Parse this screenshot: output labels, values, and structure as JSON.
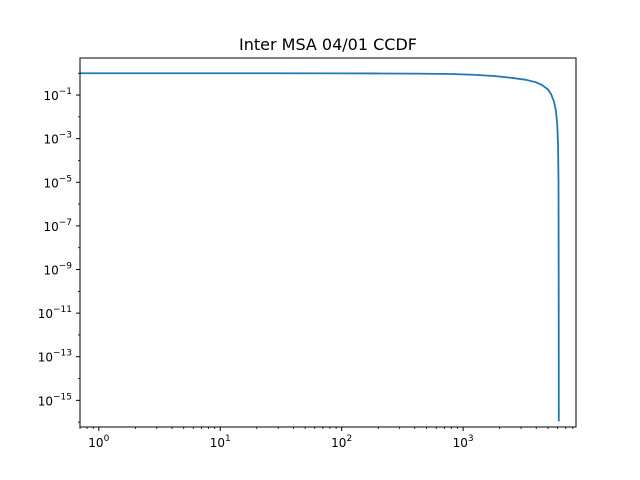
{
  "chart_data": {
    "type": "line",
    "title": "Inter MSA 04/01 CCDF",
    "xlabel": "",
    "ylabel": "",
    "x_scale": "log",
    "y_scale": "log",
    "xlim": [
      0.7,
      8500
    ],
    "ylim": [
      6e-17,
      5
    ],
    "grid": false,
    "x_ticks": [
      {
        "value": 1,
        "base": "10",
        "exp": "0"
      },
      {
        "value": 10,
        "base": "10",
        "exp": "1"
      },
      {
        "value": 100,
        "base": "10",
        "exp": "2"
      },
      {
        "value": 1000,
        "base": "10",
        "exp": "3"
      }
    ],
    "y_ticks": [
      {
        "value": 0.1,
        "base": "10",
        "exp": "−1"
      },
      {
        "value": 0.001,
        "base": "10",
        "exp": "−3"
      },
      {
        "value": 1e-05,
        "base": "10",
        "exp": "−5"
      },
      {
        "value": 1e-07,
        "base": "10",
        "exp": "−7"
      },
      {
        "value": 1e-09,
        "base": "10",
        "exp": "−9"
      },
      {
        "value": 1e-11,
        "base": "10",
        "exp": "−11"
      },
      {
        "value": 1e-13,
        "base": "10",
        "exp": "−13"
      },
      {
        "value": 1e-15,
        "base": "10",
        "exp": "−15"
      }
    ],
    "series": [
      {
        "color": "#1f77b4",
        "x": [
          0.7,
          1,
          10,
          100,
          180,
          400,
          800,
          1200,
          1800,
          2600,
          3300,
          4000,
          4500,
          5000,
          5300,
          5600,
          5800,
          5950,
          6050,
          6100,
          6120,
          6130,
          6135
        ],
        "y": [
          1.0,
          1.0,
          1.0,
          0.99,
          0.98,
          0.96,
          0.92,
          0.85,
          0.75,
          0.6,
          0.5,
          0.38,
          0.28,
          0.18,
          0.11,
          0.05,
          0.02,
          0.005,
          0.0005,
          1e-05,
          1e-09,
          1e-13,
          1.1e-16
        ]
      }
    ]
  }
}
